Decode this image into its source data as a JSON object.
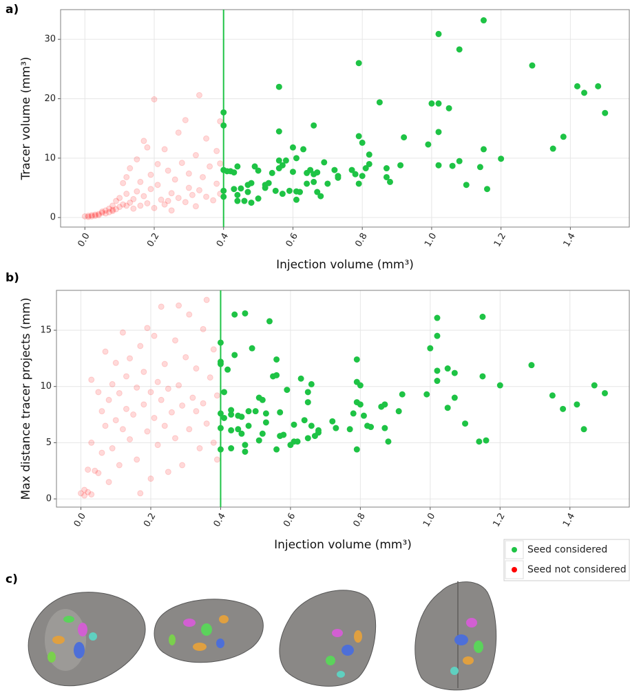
{
  "chart_data": [
    {
      "type": "scatter",
      "panel_label": "a)",
      "x_label": "Injection volume (mm³)",
      "y_label": "Tracer volume (mm³)",
      "xlim": [
        -0.07,
        1.57
      ],
      "ylim": [
        -1.6,
        35
      ],
      "xticks": [
        {
          "value": 0,
          "label": "0.0"
        },
        0.2,
        0.4,
        0.6,
        0.8,
        {
          "value": 1,
          "label": "1.0"
        },
        1.2,
        1.4
      ],
      "yticks": [
        0,
        10,
        20,
        30
      ],
      "grid": true,
      "threshold": 0.4,
      "threshold_color": "#1ec345",
      "series": [
        {
          "color": "#1ec345",
          "alpha": 1,
          "x": [
            0.4,
            0.4,
            0.4,
            0.41,
            0.4,
            0.4,
            0.42,
            0.43,
            0.44,
            0.43,
            0.44,
            0.44,
            0.45,
            0.46,
            0.47,
            0.48,
            0.47,
            0.48,
            0.49,
            0.5,
            0.5,
            0.52,
            0.52,
            0.53,
            0.54,
            0.55,
            0.56,
            0.56,
            0.56,
            0.56,
            0.57,
            0.57,
            0.58,
            0.59,
            0.6,
            0.6,
            0.61,
            0.61,
            0.61,
            0.62,
            0.63,
            0.64,
            0.64,
            0.65,
            0.66,
            0.66,
            0.66,
            0.67,
            0.67,
            0.68,
            0.69,
            0.7,
            0.72,
            0.73,
            0.73,
            0.77,
            0.78,
            0.79,
            0.79,
            0.79,
            0.8,
            0.8,
            0.81,
            0.82,
            0.82,
            0.85,
            0.87,
            0.87,
            0.88,
            0.91,
            0.92,
            0.99,
            1.0,
            1.02,
            1.02,
            1.02,
            1.02,
            1.05,
            1.06,
            1.08,
            1.08,
            1.1,
            1.14,
            1.15,
            1.15,
            1.16,
            1.2,
            1.29,
            1.35,
            1.38,
            1.42,
            1.44,
            1.48,
            1.5
          ],
          "values": [
            17.7,
            15.5,
            8.0,
            7.8,
            4.5,
            3.5,
            7.8,
            7.6,
            8.6,
            4.8,
            3.8,
            2.8,
            4.9,
            2.8,
            5.5,
            5.8,
            4.3,
            2.5,
            8.6,
            7.9,
            3.2,
            5.5,
            5.0,
            5.8,
            7.5,
            4.5,
            9.6,
            8.3,
            22.0,
            14.5,
            8.8,
            4.0,
            9.6,
            4.5,
            7.7,
            11.8,
            10.0,
            4.4,
            3.0,
            4.3,
            11.5,
            7.5,
            5.7,
            8.0,
            15.5,
            7.3,
            6.0,
            7.6,
            4.3,
            3.6,
            9.3,
            5.7,
            8.0,
            7.0,
            6.7,
            8.0,
            7.3,
            5.7,
            26.0,
            13.7,
            12.6,
            7.0,
            8.3,
            9.0,
            10.6,
            19.4,
            8.3,
            6.8,
            6.0,
            8.8,
            13.5,
            12.3,
            19.2,
            19.2,
            30.9,
            14.4,
            8.8,
            18.4,
            8.7,
            28.3,
            9.5,
            5.5,
            8.5,
            11.5,
            33.2,
            4.8,
            9.9,
            25.6,
            11.6,
            13.6,
            22.1,
            21.0,
            22.1,
            17.6
          ]
        },
        {
          "color": "#ff0000",
          "alpha": 0.15,
          "x": [
            0.0,
            0.01,
            0.01,
            0.02,
            0.02,
            0.03,
            0.03,
            0.04,
            0.04,
            0.05,
            0.05,
            0.06,
            0.06,
            0.07,
            0.07,
            0.08,
            0.08,
            0.09,
            0.09,
            0.1,
            0.1,
            0.11,
            0.11,
            0.12,
            0.12,
            0.13,
            0.13,
            0.14,
            0.14,
            0.15,
            0.15,
            0.16,
            0.16,
            0.17,
            0.17,
            0.18,
            0.18,
            0.19,
            0.19,
            0.2,
            0.2,
            0.21,
            0.21,
            0.22,
            0.23,
            0.23,
            0.24,
            0.25,
            0.25,
            0.26,
            0.27,
            0.27,
            0.28,
            0.29,
            0.29,
            0.3,
            0.3,
            0.31,
            0.32,
            0.32,
            0.33,
            0.33,
            0.34,
            0.35,
            0.35,
            0.36,
            0.37,
            0.38,
            0.38,
            0.39,
            0.39,
            0.39,
            0.24,
            0.12,
            0.08
          ],
          "values": [
            0.2,
            0.3,
            0.1,
            0.4,
            0.2,
            0.5,
            0.3,
            0.6,
            0.4,
            0.8,
            1.0,
            0.7,
            1.2,
            0.9,
            1.5,
            1.1,
            2.0,
            1.4,
            2.8,
            1.8,
            3.3,
            2.2,
            5.8,
            4.0,
            6.8,
            2.5,
            8.3,
            3.1,
            1.5,
            4.4,
            9.8,
            2.0,
            6.0,
            12.9,
            3.6,
            11.8,
            2.4,
            7.2,
            4.8,
            19.9,
            1.6,
            5.5,
            9.0,
            3.0,
            11.5,
            2.2,
            7.9,
            4.1,
            1.2,
            6.4,
            14.3,
            3.3,
            9.2,
            2.6,
            16.4,
            5.0,
            7.4,
            3.8,
            10.5,
            1.9,
            20.6,
            4.6,
            6.8,
            13.3,
            3.5,
            8.6,
            2.9,
            5.7,
            11.2,
            4.0,
            9.1,
            16.2,
            2.8,
            2.0,
            1.3
          ]
        }
      ]
    },
    {
      "type": "scatter",
      "panel_label": "b)",
      "x_label": "Injection volume (mm³)",
      "y_label": "Max distance tracer projects (mm)",
      "xlim": [
        -0.07,
        1.57
      ],
      "ylim": [
        -0.73,
        18.55
      ],
      "xticks": [
        {
          "value": 0,
          "label": "0.0"
        },
        0.2,
        0.4,
        0.6,
        0.8,
        {
          "value": 1,
          "label": "1.0"
        },
        1.2,
        1.4
      ],
      "yticks": [
        0,
        5,
        10,
        15
      ],
      "grid": true,
      "threshold": 0.4,
      "threshold_color": "#1ec345",
      "legend": "below-right",
      "series": [
        {
          "name": "Seed considered",
          "color": "#1ec345",
          "alpha": 1,
          "x": [
            0.4,
            0.4,
            0.4,
            0.41,
            0.4,
            0.4,
            0.4,
            0.41,
            0.42,
            0.43,
            0.43,
            0.43,
            0.43,
            0.44,
            0.44,
            0.45,
            0.45,
            0.46,
            0.46,
            0.47,
            0.47,
            0.47,
            0.48,
            0.48,
            0.49,
            0.5,
            0.51,
            0.51,
            0.52,
            0.52,
            0.53,
            0.53,
            0.54,
            0.55,
            0.56,
            0.56,
            0.56,
            0.57,
            0.57,
            0.58,
            0.59,
            0.6,
            0.61,
            0.61,
            0.62,
            0.63,
            0.64,
            0.65,
            0.65,
            0.65,
            0.66,
            0.66,
            0.67,
            0.68,
            0.68,
            0.72,
            0.73,
            0.77,
            0.78,
            0.79,
            0.79,
            0.79,
            0.79,
            0.8,
            0.8,
            0.81,
            0.82,
            0.83,
            0.86,
            0.87,
            0.88,
            0.87,
            0.91,
            0.92,
            0.99,
            1.0,
            1.02,
            1.02,
            1.02,
            1.02,
            1.05,
            1.05,
            1.07,
            1.07,
            1.1,
            1.14,
            1.15,
            1.15,
            1.16,
            1.2,
            1.29,
            1.35,
            1.38,
            1.42,
            1.44,
            1.47,
            1.5
          ],
          "values": [
            13.9,
            12.2,
            12.0,
            9.5,
            7.6,
            6.3,
            4.4,
            7.2,
            11.5,
            7.9,
            7.5,
            6.1,
            4.5,
            16.4,
            12.8,
            6.2,
            7.4,
            5.8,
            7.3,
            16.5,
            4.2,
            4.8,
            6.5,
            7.8,
            13.4,
            7.8,
            9.0,
            5.2,
            5.8,
            8.8,
            6.8,
            7.6,
            15.8,
            10.9,
            12.4,
            11.0,
            4.4,
            7.7,
            5.6,
            5.7,
            9.7,
            4.8,
            5.1,
            6.6,
            5.1,
            10.7,
            7.0,
            5.4,
            8.6,
            9.5,
            10.2,
            6.5,
            5.6,
            6.1,
            5.9,
            6.9,
            6.3,
            6.2,
            7.6,
            4.4,
            8.6,
            12.4,
            10.4,
            10.1,
            8.4,
            7.4,
            6.5,
            6.4,
            8.2,
            6.3,
            5.1,
            8.4,
            7.8,
            9.3,
            9.3,
            13.4,
            16.1,
            14.5,
            11.4,
            10.5,
            11.6,
            8.1,
            9.0,
            11.2,
            6.7,
            5.1,
            16.2,
            10.9,
            5.2,
            10.1,
            11.9,
            9.2,
            8.0,
            8.4,
            6.2,
            10.1,
            9.4
          ]
        },
        {
          "name": "Seed not considered",
          "color": "#ff0000",
          "alpha": 0.15,
          "x": [
            0.0,
            0.01,
            0.01,
            0.02,
            0.02,
            0.03,
            0.03,
            0.03,
            0.04,
            0.05,
            0.05,
            0.06,
            0.06,
            0.07,
            0.07,
            0.08,
            0.08,
            0.09,
            0.09,
            0.1,
            0.1,
            0.11,
            0.11,
            0.12,
            0.12,
            0.13,
            0.13,
            0.14,
            0.14,
            0.15,
            0.16,
            0.16,
            0.17,
            0.17,
            0.18,
            0.18,
            0.19,
            0.19,
            0.2,
            0.2,
            0.21,
            0.21,
            0.22,
            0.22,
            0.23,
            0.23,
            0.24,
            0.24,
            0.25,
            0.25,
            0.26,
            0.27,
            0.27,
            0.28,
            0.28,
            0.29,
            0.29,
            0.3,
            0.31,
            0.31,
            0.32,
            0.33,
            0.33,
            0.34,
            0.35,
            0.35,
            0.36,
            0.36,
            0.37,
            0.38,
            0.38,
            0.39,
            0.39
          ],
          "values": [
            0.5,
            0.3,
            0.8,
            0.6,
            2.6,
            0.4,
            10.6,
            5.0,
            2.5,
            2.3,
            9.5,
            7.8,
            4.1,
            13.1,
            6.5,
            8.8,
            1.5,
            10.2,
            4.5,
            7.0,
            12.1,
            9.4,
            3.0,
            14.8,
            6.2,
            8.0,
            10.9,
            5.3,
            12.5,
            7.5,
            9.9,
            3.5,
            13.6,
            0.5,
            8.4,
            11.3,
            6.0,
            15.2,
            9.5,
            1.8,
            7.2,
            14.5,
            10.4,
            4.8,
            17.1,
            8.8,
            6.5,
            12.0,
            2.4,
            9.8,
            7.7,
            14.1,
            5.4,
            17.2,
            10.1,
            8.3,
            3.0,
            12.6,
            6.2,
            16.4,
            9.0,
            7.8,
            11.6,
            4.5,
            15.1,
            8.5,
            17.7,
            6.7,
            10.8,
            13.3,
            5.0,
            9.2,
            3.5
          ]
        }
      ]
    }
  ],
  "figure_c_label": "c)"
}
